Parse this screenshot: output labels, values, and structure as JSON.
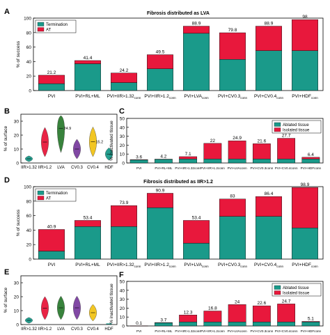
{
  "colors": {
    "termination": "#1a9a8a",
    "at": "#e8183c",
    "ablated": "#1a9a8a",
    "isolated": "#e8183c",
    "axis": "#000000",
    "cat0": "#1a9a8a",
    "cat1": "#e8183c",
    "cat2": "#2e7d32",
    "cat3": "#7b3fa0",
    "cat4": "#f2c418"
  },
  "chart_data": [
    {
      "panel": "A",
      "type": "bar",
      "stacked": true,
      "title": "Fibrosis distributed as LVA",
      "ylabel": "% of success",
      "ylim": [
        0,
        100
      ],
      "yticks": [
        0,
        20,
        40,
        60,
        80,
        100
      ],
      "categories": [
        {
          "main": "PVI",
          "sub": ""
        },
        {
          "main": "PVI+RL+ML",
          "sub": ""
        },
        {
          "main": "PVI+IIR>1.32",
          "sub": "conn"
        },
        {
          "main": "PVI+IIR>1.2",
          "sub": "conn"
        },
        {
          "main": "PVI+LVA",
          "sub": "conn"
        },
        {
          "main": "PVI+CV0.3",
          "sub": "conn"
        },
        {
          "main": "PVI+CV0.4",
          "sub": "conn"
        },
        {
          "main": "PVI+HDF",
          "sub": "conn"
        }
      ],
      "series": [
        {
          "name": "Termination",
          "values": [
            9.5,
            37,
            11,
            30,
            79,
            43,
            55,
            55
          ]
        },
        {
          "name": "AT",
          "values": [
            11.7,
            4.4,
            13.2,
            19.5,
            9.9,
            36.8,
            33.9,
            43
          ]
        }
      ],
      "totals": [
        "21.2",
        "41.4",
        "24.2",
        "49.5",
        "88.9",
        "79.8",
        "88.9",
        "98"
      ],
      "legend": "top-left"
    },
    {
      "panel": "B",
      "type": "violin",
      "ylabel": "% of surface",
      "ylim": [
        0,
        35
      ],
      "yticks": [
        0,
        10,
        20,
        30
      ],
      "categories": [
        "IIR>1.32",
        "IIR>1.2",
        "LVA",
        "CV0.3",
        "CV0.4",
        "HDF"
      ],
      "medians": [
        "",
        "",
        "24.9",
        "",
        "15.2",
        ""
      ],
      "values": [
        3,
        15,
        24.9,
        10,
        15.2,
        6.4
      ]
    },
    {
      "panel": "C",
      "type": "bar",
      "stacked": true,
      "ylabel": "% inactivated tissue",
      "ylim": [
        0,
        50
      ],
      "yticks": [
        0,
        10,
        20,
        30,
        40,
        50
      ],
      "categories": [
        "PVI",
        "PVI+RL+ML",
        "PVI+IIR>1.32conn",
        "PVI+IIR>1.2conn",
        "PVI+LVAconn",
        "PVI+CV0.3conn",
        "PVI+CV0.4conn",
        "PVI+HDFconn"
      ],
      "series": [
        {
          "name": "Ablated tissue",
          "values": [
            3.6,
            4.2,
            4.5,
            4.5,
            4.5,
            4.5,
            4.5,
            4.5
          ]
        },
        {
          "name": "Isolated tissue",
          "values": [
            0,
            0,
            2.6,
            17.5,
            20.4,
            17.1,
            23.2,
            1.9
          ]
        }
      ],
      "totals": [
        "3.6",
        "4.2",
        "7.1",
        "22",
        "24.9",
        "21.6",
        "27.7",
        "6.4"
      ],
      "legend": "top-right"
    },
    {
      "panel": "D",
      "type": "bar",
      "stacked": true,
      "title": "Fibrosis distributed as IIR>1.2",
      "ylabel": "% of success",
      "ylim": [
        0,
        100
      ],
      "yticks": [
        0,
        20,
        40,
        60,
        80,
        100
      ],
      "categories": [
        {
          "main": "PVI",
          "sub": ""
        },
        {
          "main": "PVI+RL+ML",
          "sub": ""
        },
        {
          "main": "PVI+IIR>1.32",
          "sub": "conn"
        },
        {
          "main": "PVI+IIR>1.2",
          "sub": "conn"
        },
        {
          "main": "PVI+LVA",
          "sub": "conn"
        },
        {
          "main": "PVI+CV0.3",
          "sub": "conn"
        },
        {
          "main": "PVI+CV0.4",
          "sub": "conn"
        },
        {
          "main": "PVI+HDF",
          "sub": "conn"
        }
      ],
      "series": [
        {
          "name": "Termination",
          "values": [
            11,
            45,
            45,
            71,
            22,
            59,
            59,
            43
          ]
        },
        {
          "name": "AT",
          "values": [
            29.9,
            8.4,
            28.9,
            19.9,
            31.4,
            24,
            27.4,
            55.9
          ]
        }
      ],
      "totals": [
        "40.9",
        "53.4",
        "73.9",
        "90.9",
        "53.4",
        "83",
        "86.4",
        "98.9"
      ],
      "legend": "top-left"
    },
    {
      "panel": "E",
      "type": "violin",
      "ylabel": "% of surface",
      "ylim": [
        0,
        35
      ],
      "yticks": [
        0,
        10,
        20,
        30
      ],
      "categories": [
        "IIR>1.32",
        "IIR>1.2",
        "LVA",
        "CV0.3",
        "CV0.4",
        "HDF"
      ],
      "medians": [
        "",
        "",
        "",
        "",
        "",
        ""
      ],
      "values": [
        3,
        11.8,
        12,
        12,
        8.5,
        1
      ]
    },
    {
      "panel": "F",
      "type": "bar",
      "stacked": true,
      "ylabel": "% inactivated tissue",
      "ylim": [
        0,
        50
      ],
      "yticks": [
        0,
        10,
        20,
        30,
        40,
        50
      ],
      "categories": [
        "PVI",
        "PVI+RL+ML",
        "PVI+IIR>1.32conn",
        "PVI+IIR>1.2conn",
        "PVI+LVAconn",
        "PVI+CV0.3conn",
        "PVI+CV0.4conn",
        "PVI+HDFconn"
      ],
      "series": [
        {
          "name": "Ablated tissue",
          "values": [
            0.1,
            3.7,
            4.5,
            4.5,
            4.5,
            4.5,
            4.5,
            4.5
          ]
        },
        {
          "name": "Isolated tissue",
          "values": [
            0,
            0,
            7.8,
            12.3,
            19.5,
            18.1,
            20.2,
            0.6
          ]
        }
      ],
      "totals": [
        "0.1",
        "3.7",
        "12.3",
        "16.8",
        "24",
        "22.6",
        "24.7",
        "5.1"
      ],
      "legend": "top-right"
    }
  ]
}
